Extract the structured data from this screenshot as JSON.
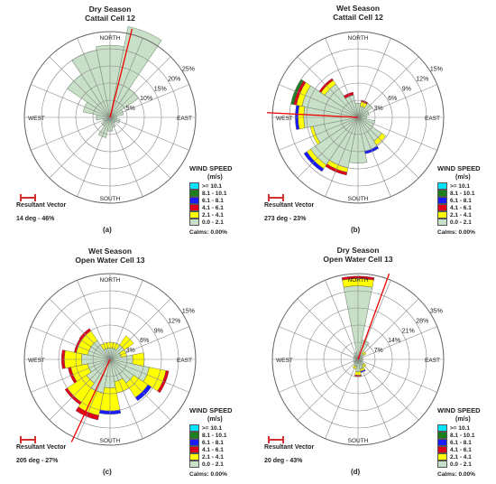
{
  "legend_title": "WIND SPEED",
  "legend_unit": "(m/s)",
  "bins": [
    ">= 10.1",
    "8.1 - 10.1",
    "6.1 - 8.1",
    "4.1 - 6.1",
    "2.1 - 4.1",
    "0.0 - 2.1"
  ],
  "bin_colors": [
    "#00e5ff",
    "#1b7f1b",
    "#1a1aff",
    "#e0001a",
    "#ffff00",
    "#c8e0c8"
  ],
  "directions": [
    "NORTH",
    "EAST",
    "SOUTH",
    "WEST"
  ],
  "resultant_label": "Resultant Vector",
  "chart_data": [
    {
      "type": "wind_rose",
      "label": "(a)",
      "title_lines": [
        "Dry Season",
        "Cattail Cell 12"
      ],
      "rings": [
        "5%",
        "10%",
        "15%",
        "20%",
        "25%"
      ],
      "ring_step": 5,
      "max_ring": 25,
      "resultant": "14 deg - 46%",
      "resultant_dir": 14,
      "calms": "Calms: 0.00%",
      "petals": [
        [
          0,
          21
        ],
        [
          22.5,
          27
        ],
        [
          45,
          10
        ],
        [
          67.5,
          4
        ],
        [
          90,
          2
        ],
        [
          112.5,
          3
        ],
        [
          135,
          2
        ],
        [
          157.5,
          3
        ],
        [
          180,
          4
        ],
        [
          202.5,
          6
        ],
        [
          225,
          3
        ],
        [
          247.5,
          2
        ],
        [
          270,
          4
        ],
        [
          292.5,
          8
        ],
        [
          315,
          15
        ],
        [
          337.5,
          20
        ]
      ],
      "edges": []
    },
    {
      "type": "wind_rose",
      "label": "(b)",
      "title_lines": [
        "Wet Season",
        "Cattail Cell 12"
      ],
      "rings": [
        "3%",
        "6%",
        "9%",
        "12%",
        "15%"
      ],
      "ring_step": 3,
      "max_ring": 15,
      "resultant": "273 deg - 23%",
      "resultant_dir": 273,
      "calms": "Calms: 0.00%",
      "petals": [
        [
          0,
          2.5
        ],
        [
          22.5,
          2
        ],
        [
          45,
          3
        ],
        [
          67.5,
          2
        ],
        [
          90,
          1.5
        ],
        [
          112.5,
          3
        ],
        [
          135,
          5
        ],
        [
          157.5,
          6
        ],
        [
          180,
          8
        ],
        [
          202.5,
          9
        ],
        [
          225,
          10
        ],
        [
          247.5,
          8
        ],
        [
          270,
          9.5
        ],
        [
          292.5,
          10
        ],
        [
          315,
          7
        ],
        [
          337.5,
          4
        ]
      ],
      "edges": [
        [
          22.5,
          [
            [
              0.8,
              "#ffff00"
            ],
            [
              0.3,
              "#e0001a"
            ]
          ]
        ],
        [
          135,
          [
            [
              0.8,
              "#ffff00"
            ]
          ]
        ],
        [
          157.5,
          [
            [
              0.5,
              "#1a1aff"
            ]
          ]
        ],
        [
          202.5,
          [
            [
              0.8,
              "#ffff00"
            ],
            [
              0.5,
              "#e0001a"
            ]
          ]
        ],
        [
          225,
          [
            [
              0.8,
              "#ffff00"
            ],
            [
              0.6,
              "#1a1aff"
            ]
          ]
        ],
        [
          247.5,
          [
            [
              0.5,
              "#ffff00"
            ]
          ]
        ],
        [
          270,
          [
            [
              1.0,
              "#ffff00"
            ],
            [
              0.5,
              "#1a1aff"
            ]
          ]
        ],
        [
          292.5,
          [
            [
              1.0,
              "#ffff00"
            ],
            [
              0.5,
              "#e0001a"
            ],
            [
              0.5,
              "#1b7f1b"
            ]
          ]
        ],
        [
          315,
          [
            [
              0.8,
              "#ffff00"
            ],
            [
              0.4,
              "#e0001a"
            ]
          ]
        ],
        [
          337.5,
          [
            [
              0.5,
              "#e0001a"
            ]
          ]
        ]
      ]
    },
    {
      "type": "wind_rose",
      "label": "(c)",
      "title_lines": [
        "Wet Season",
        "Open Water Cell 13"
      ],
      "rings": [
        "3%",
        "6%",
        "9%",
        "12%",
        "15%"
      ],
      "ring_step": 3,
      "max_ring": 15,
      "resultant": "205 deg - 27%",
      "resultant_dir": 205,
      "calms": "Calms: 0.00%",
      "petals": [
        [
          0,
          2
        ],
        [
          22.5,
          2
        ],
        [
          45,
          3
        ],
        [
          67.5,
          2
        ],
        [
          90,
          4
        ],
        [
          112.5,
          7
        ],
        [
          135,
          5
        ],
        [
          157.5,
          4
        ],
        [
          180,
          5
        ],
        [
          202.5,
          6
        ],
        [
          225,
          5
        ],
        [
          247.5,
          4
        ],
        [
          270,
          5
        ],
        [
          292.5,
          4
        ],
        [
          315,
          4
        ],
        [
          337.5,
          2
        ]
      ],
      "edges": [
        [
          45,
          [
            [
              2,
              "#ffff00"
            ]
          ]
        ],
        [
          67.5,
          [
            [
              1,
              "#ffff00"
            ]
          ]
        ],
        [
          90,
          [
            [
              2,
              "#ffff00"
            ]
          ]
        ],
        [
          112.5,
          [
            [
              3,
              "#ffff00"
            ],
            [
              0.5,
              "#e0001a"
            ]
          ]
        ],
        [
          135,
          [
            [
              3,
              "#ffff00"
            ],
            [
              0.7,
              "#1a1aff"
            ]
          ]
        ],
        [
          157.5,
          [
            [
              2,
              "#ffff00"
            ]
          ]
        ],
        [
          180,
          [
            [
              4,
              "#ffff00"
            ],
            [
              0.6,
              "#1a1aff"
            ]
          ]
        ],
        [
          202.5,
          [
            [
              4,
              "#ffff00"
            ],
            [
              0.8,
              "#e0001a"
            ]
          ]
        ],
        [
          225,
          [
            [
              4,
              "#ffff00"
            ],
            [
              0.5,
              "#e0001a"
            ]
          ]
        ],
        [
          247.5,
          [
            [
              3,
              "#ffff00"
            ],
            [
              0.5,
              "#e0001a"
            ]
          ]
        ],
        [
          270,
          [
            [
              3,
              "#ffff00"
            ],
            [
              0.5,
              "#e0001a"
            ]
          ]
        ],
        [
          292.5,
          [
            [
              2,
              "#ffff00"
            ],
            [
              0.4,
              "#e0001a"
            ]
          ]
        ],
        [
          315,
          [
            [
              2,
              "#ffff00"
            ],
            [
              0.5,
              "#e0001a"
            ]
          ]
        ],
        [
          337.5,
          [
            [
              1,
              "#ffff00"
            ]
          ]
        ],
        [
          0,
          [
            [
              1,
              "#ffff00"
            ]
          ]
        ],
        [
          22.5,
          [
            [
              1,
              "#ffff00"
            ]
          ]
        ]
      ]
    },
    {
      "type": "wind_rose",
      "label": "(d)",
      "title_lines": [
        "Dry Season",
        "Open Water Cell 13"
      ],
      "rings": [
        "7%",
        "14%",
        "21%",
        "28%",
        "35%"
      ],
      "ring_step": 7,
      "max_ring": 35,
      "resultant": "20 deg - 43%",
      "resultant_dir": 20,
      "calms": "Calms: 0.00%",
      "petals": [
        [
          0,
          30
        ],
        [
          22.5,
          8
        ],
        [
          45,
          3
        ],
        [
          67.5,
          2
        ],
        [
          90,
          2
        ],
        [
          112.5,
          2
        ],
        [
          135,
          3
        ],
        [
          157.5,
          4
        ],
        [
          180,
          5
        ],
        [
          202.5,
          3
        ],
        [
          225,
          2
        ],
        [
          247.5,
          2
        ],
        [
          270,
          1
        ],
        [
          292.5,
          2
        ],
        [
          315,
          2
        ],
        [
          337.5,
          3
        ]
      ],
      "edges": [
        [
          0,
          [
            [
              3,
              "#ffff00"
            ],
            [
              1,
              "#e0001a"
            ]
          ]
        ],
        [
          157.5,
          [
            [
              1,
              "#ffff00"
            ],
            [
              0.5,
              "#1a1aff"
            ]
          ]
        ],
        [
          180,
          [
            [
              1.5,
              "#ffff00"
            ],
            [
              0.6,
              "#e0001a"
            ]
          ]
        ],
        [
          202.5,
          [
            [
              1,
              "#ffff00"
            ]
          ]
        ],
        [
          135,
          [
            [
              1,
              "#ffff00"
            ]
          ]
        ],
        [
          45,
          [
            [
              1,
              "#ffff00"
            ]
          ]
        ]
      ]
    }
  ]
}
